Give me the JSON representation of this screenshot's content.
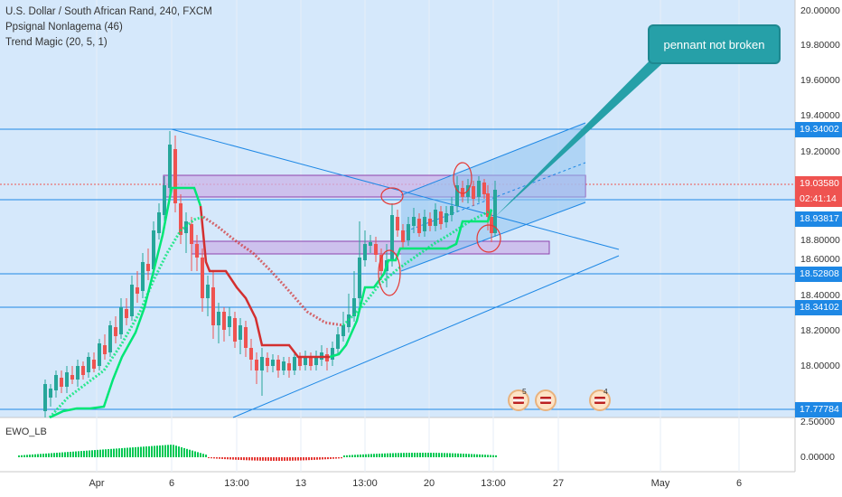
{
  "legend": {
    "symbol_line": "U.S. Dollar / South African Rand, 240, FXCM",
    "indicator_1": "Ppsignal Nonlagema (46)",
    "indicator_2": "Trend Magic (20, 5, 1)"
  },
  "callout": {
    "text": "pennant not broken"
  },
  "ewo": {
    "label": "EWO_LB"
  },
  "price_axis": {
    "ticks": [
      "20.00000",
      "19.80000",
      "19.60000",
      "19.40000",
      "19.20000",
      "18.80000",
      "18.60000",
      "18.40000",
      "18.20000",
      "18.00000"
    ],
    "highlight_labels": [
      {
        "text": "19.34002",
        "color": "#1e88e5",
        "text_color": "#ffffff"
      },
      {
        "text": "19.03580",
        "color": "#ef5350",
        "text_color": "#ffffff"
      },
      {
        "text": "02:41:14",
        "color": "#ef5350",
        "text_color": "#ffffff"
      },
      {
        "text": "18.93817",
        "color": "#1e88e5",
        "text_color": "#ffffff"
      },
      {
        "text": "18.52808",
        "color": "#1e88e5",
        "text_color": "#ffffff"
      },
      {
        "text": "18.34102",
        "color": "#1e88e5",
        "text_color": "#ffffff"
      },
      {
        "text": "17.77784",
        "color": "#1e88e5",
        "text_color": "#ffffff"
      }
    ],
    "ewo_ticks": [
      "2.50000",
      "0.00000"
    ]
  },
  "time_axis": {
    "ticks": [
      "Apr",
      "6",
      "13:00",
      "13",
      "13:00",
      "20",
      "13:00",
      "27",
      "May",
      "6"
    ]
  },
  "events": [
    {
      "count": "5"
    },
    {
      "count": ""
    },
    {
      "count": "4"
    }
  ],
  "colors": {
    "background_zone": "#d5e8fb",
    "bull": "#26a69a",
    "bear": "#ef5350",
    "trend_up": "#00e676",
    "trend_down": "#d32f2f",
    "channel": "#1e88e5",
    "rect_zone": "#b39ddb"
  }
}
